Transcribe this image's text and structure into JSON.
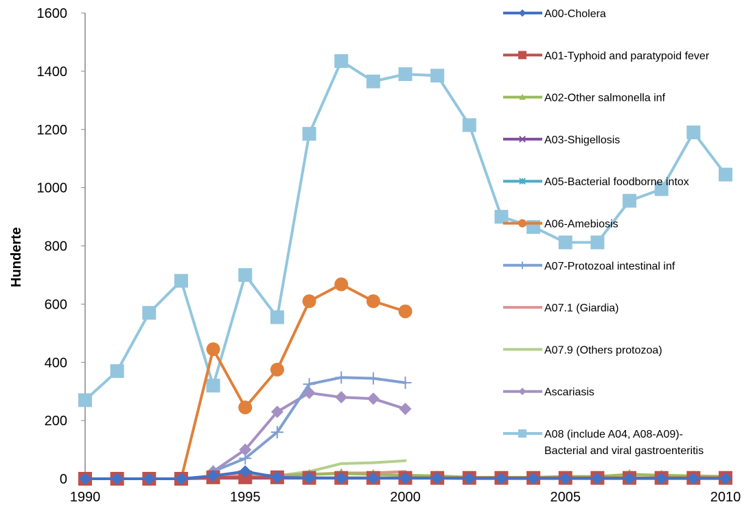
{
  "chart_data": {
    "type": "line",
    "title": "",
    "xlabel": "",
    "ylabel": "Hunderte",
    "xlim": [
      1990,
      2010
    ],
    "ylim": [
      0,
      1600
    ],
    "xticks": [
      1990,
      1995,
      2000,
      2005,
      2010
    ],
    "yticks": [
      0,
      200,
      400,
      600,
      800,
      1000,
      1200,
      1400,
      1600
    ],
    "grid": false,
    "legend_position": "right",
    "series": [
      {
        "name": "A00-Cholera",
        "color": "#4472C4",
        "marker": "diamond",
        "x": [
          1990,
          1991,
          1992,
          1993,
          1994,
          1995,
          1996,
          1997,
          1998,
          1999,
          2000,
          2001,
          2002,
          2003,
          2004,
          2005,
          2006,
          2007,
          2008,
          2009,
          2010
        ],
        "y": [
          0,
          0,
          0,
          0,
          10,
          25,
          5,
          3,
          2,
          2,
          2,
          2,
          1,
          1,
          1,
          1,
          1,
          1,
          1,
          1,
          1
        ]
      },
      {
        "name": "A01-Typhoid and paratypoid fever",
        "color": "#C0504D",
        "marker": "square",
        "x": [
          1990,
          1991,
          1992,
          1993,
          1994,
          1995,
          1996,
          1997,
          1998,
          1999,
          2000,
          2001,
          2002,
          2003,
          2004,
          2005,
          2006,
          2007,
          2008,
          2009,
          2010
        ],
        "y": [
          0,
          0,
          0,
          0,
          5,
          5,
          5,
          3,
          3,
          3,
          3,
          3,
          3,
          3,
          3,
          3,
          3,
          3,
          3,
          3,
          3
        ]
      },
      {
        "name": "A02-Other salmonella inf",
        "color": "#9BBB59",
        "marker": "triangle",
        "x": [
          1990,
          1991,
          1992,
          1993,
          1994,
          1995,
          1996,
          1997,
          1998,
          1999,
          2000,
          2001,
          2002,
          2003,
          2004,
          2005,
          2006,
          2007,
          2008,
          2009,
          2010
        ],
        "y": [
          0,
          0,
          0,
          0,
          5,
          5,
          8,
          15,
          18,
          15,
          12,
          10,
          5,
          5,
          5,
          8,
          8,
          15,
          12,
          10,
          8
        ]
      },
      {
        "name": "A03-Shigellosis",
        "color": "#7F4F9F",
        "marker": "x",
        "x": [
          1990,
          1991,
          1992,
          1993,
          1994,
          1995,
          1996,
          1997,
          1998,
          1999,
          2000,
          2001,
          2002,
          2003,
          2004,
          2005,
          2006,
          2007,
          2008,
          2009,
          2010
        ],
        "y": [
          0,
          0,
          0,
          0,
          2,
          2,
          2,
          2,
          2,
          2,
          2,
          2,
          2,
          2,
          2,
          2,
          2,
          2,
          2,
          2,
          2
        ]
      },
      {
        "name": "A05-Bacterial foodborne intox",
        "color": "#4BACC6",
        "marker": "star",
        "x": [
          1990,
          1991,
          1992,
          1993,
          1994,
          1995,
          1996,
          1997,
          1998,
          1999,
          2000,
          2001,
          2002,
          2003,
          2004,
          2005,
          2006,
          2007,
          2008,
          2009,
          2010
        ],
        "y": [
          0,
          0,
          0,
          0,
          3,
          3,
          3,
          3,
          3,
          3,
          3,
          3,
          3,
          3,
          3,
          3,
          3,
          3,
          3,
          3,
          3
        ]
      },
      {
        "name": "A06-Amebiosis",
        "color": "#E0803A",
        "marker": "circle",
        "x": [
          1990,
          1991,
          1992,
          1993,
          1994,
          1995,
          1996,
          1997,
          1998,
          1999,
          2000
        ],
        "y": [
          0,
          0,
          0,
          0,
          445,
          245,
          375,
          610,
          668,
          610,
          575
        ]
      },
      {
        "name": "A07-Protozoal intestinal inf",
        "color": "#7F9FD0",
        "marker": "plus",
        "x": [
          1994,
          1995,
          1996,
          1997,
          1998,
          1999,
          2000
        ],
        "y": [
          25,
          70,
          160,
          325,
          348,
          345,
          330
        ]
      },
      {
        "name": "A07.1 (Giardia)",
        "color": "#D99590",
        "marker": "none",
        "x": [
          1994,
          1995,
          1996,
          1997,
          1998,
          1999,
          2000
        ],
        "y": [
          10,
          12,
          12,
          15,
          20,
          20,
          25
        ]
      },
      {
        "name": "A07.9 (Others protozoa)",
        "color": "#B3CF8C",
        "marker": "none",
        "x": [
          1994,
          1995,
          1996,
          1997,
          1998,
          1999,
          2000
        ],
        "y": [
          5,
          5,
          10,
          25,
          52,
          55,
          62
        ]
      },
      {
        "name": "Ascariasis",
        "color": "#A590C3",
        "marker": "diamond",
        "x": [
          1994,
          1995,
          1996,
          1997,
          1998,
          1999,
          2000
        ],
        "y": [
          25,
          100,
          230,
          295,
          280,
          275,
          240
        ]
      },
      {
        "name": "A08 (include A04, A08-A09)-\nBacterial and viral gastroenteritis",
        "color": "#93C6DE",
        "marker": "square",
        "x": [
          1990,
          1991,
          1992,
          1993,
          1994,
          1995,
          1996,
          1997,
          1998,
          1999,
          2000,
          2001,
          2002,
          2003,
          2004,
          2005,
          2006,
          2007,
          2008,
          2009,
          2010
        ],
        "y": [
          270,
          370,
          570,
          680,
          320,
          700,
          555,
          1185,
          1435,
          1365,
          1390,
          1385,
          1215,
          900,
          865,
          812,
          812,
          955,
          995,
          1190,
          1045
        ]
      }
    ]
  }
}
